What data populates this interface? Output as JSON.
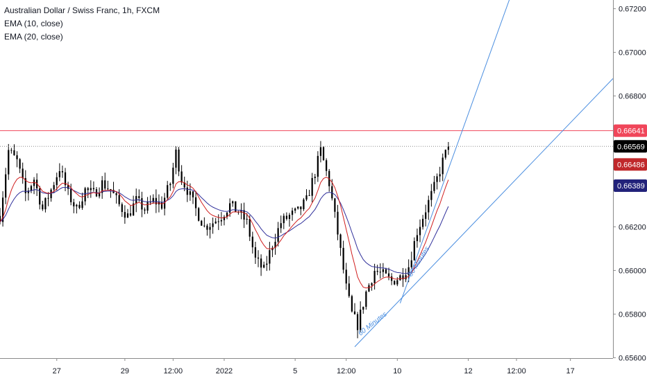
{
  "header": {
    "symbol_title": "Australian Dollar / Swiss Franc, 1h, FXCM",
    "indicator_1": "EMA (10, close)",
    "indicator_2": "EMA (20, close)"
  },
  "colors": {
    "candle": "#000000",
    "ema10": "#d01d1d",
    "ema20": "#2e2e9a",
    "trendline": "#4a8ee0",
    "horizontal_line": "#f0465a",
    "last_price_line": "#8a8a8a",
    "axis_line": "#8a8a8a"
  },
  "annotations": [
    {
      "text": "60 Minutes"
    },
    {
      "text": "60 Minutes"
    }
  ],
  "chart_data": {
    "type": "candlestick",
    "title": "Australian Dollar / Swiss Franc, 1h, FXCM",
    "xlabel": "",
    "ylabel": "",
    "y_ticks": [
      "0.67200",
      "0.67000",
      "0.66800",
      "0.66200",
      "0.66000",
      "0.65800",
      "0.65600"
    ],
    "x_ticks": [
      {
        "label": "27",
        "index": 20
      },
      {
        "label": "29",
        "index": 44
      },
      {
        "label": "12:00",
        "index": 61
      },
      {
        "label": "2022",
        "index": 79
      },
      {
        "label": "5",
        "index": 104
      },
      {
        "label": "12:00",
        "index": 122
      },
      {
        "label": "10",
        "index": 140
      },
      {
        "label": "12",
        "index": 165
      },
      {
        "label": "12:00",
        "index": 182
      },
      {
        "label": "17",
        "index": 201
      }
    ],
    "x_range": [
      0,
      216
    ],
    "y_range": [
      0.65598,
      0.6724
    ],
    "grid": false,
    "price_labels": [
      {
        "name": "Horizontal line",
        "value": 0.66641,
        "text": "0.66641",
        "bg": "#f0465a",
        "text_color": "#ffffff"
      },
      {
        "name": "Last price",
        "value": 0.66569,
        "text": "0.66569",
        "bg": "#000000",
        "text_color": "#ffffff"
      },
      {
        "name": "EMA (10, close)",
        "value": 0.66486,
        "text": "0.66486",
        "bg": "#c0282b",
        "text_color": "#ffffff"
      },
      {
        "name": "EMA (20, close)",
        "value": 0.66389,
        "text": "0.66389",
        "bg": "#22227a",
        "text_color": "#ffffff"
      }
    ],
    "horizontal_line": 0.66641,
    "trendlines": [
      {
        "from": {
          "index": 125,
          "price": 0.6565
        },
        "to": {
          "index": 216,
          "price": 0.6688
        }
      },
      {
        "from": {
          "index": 141,
          "price": 0.6585
        },
        "to": {
          "index": 180,
          "price": 0.6726
        }
      }
    ],
    "annotations_pos": [
      {
        "index": 127,
        "price": 0.657,
        "angle": -38
      },
      {
        "index": 145,
        "price": 0.6597,
        "angle": -58
      }
    ],
    "anchors": [
      [
        0,
        0.6625
      ],
      [
        3,
        0.6655
      ],
      [
        6,
        0.665
      ],
      [
        9,
        0.6635
      ],
      [
        12,
        0.6642
      ],
      [
        15,
        0.6628
      ],
      [
        18,
        0.6637
      ],
      [
        21,
        0.6647
      ],
      [
        24,
        0.6635
      ],
      [
        27,
        0.6628
      ],
      [
        30,
        0.6637
      ],
      [
        33,
        0.6635
      ],
      [
        36,
        0.664
      ],
      [
        39,
        0.6637
      ],
      [
        42,
        0.663
      ],
      [
        45,
        0.6625
      ],
      [
        48,
        0.6632
      ],
      [
        51,
        0.6628
      ],
      [
        54,
        0.6632
      ],
      [
        57,
        0.663
      ],
      [
        60,
        0.664
      ],
      [
        62,
        0.6654
      ],
      [
        64,
        0.6642
      ],
      [
        66,
        0.6637
      ],
      [
        69,
        0.6628
      ],
      [
        72,
        0.662
      ],
      [
        75,
        0.6622
      ],
      [
        78,
        0.6625
      ],
      [
        81,
        0.663
      ],
      [
        84,
        0.6627
      ],
      [
        87,
        0.6622
      ],
      [
        90,
        0.6605
      ],
      [
        93,
        0.66
      ],
      [
        96,
        0.6612
      ],
      [
        99,
        0.6622
      ],
      [
        102,
        0.6625
      ],
      [
        105,
        0.6627
      ],
      [
        108,
        0.6632
      ],
      [
        111,
        0.6645
      ],
      [
        113,
        0.6655
      ],
      [
        116,
        0.664
      ],
      [
        119,
        0.6617
      ],
      [
        122,
        0.6592
      ],
      [
        124,
        0.658
      ],
      [
        126,
        0.6575
      ],
      [
        129,
        0.659
      ],
      [
        132,
        0.66
      ],
      [
        135,
        0.6598
      ],
      [
        138,
        0.6595
      ],
      [
        141,
        0.6597
      ],
      [
        144,
        0.6602
      ],
      [
        147,
        0.6618
      ],
      [
        150,
        0.6628
      ],
      [
        153,
        0.6638
      ],
      [
        156,
        0.665
      ],
      [
        158,
        0.6657
      ]
    ]
  }
}
